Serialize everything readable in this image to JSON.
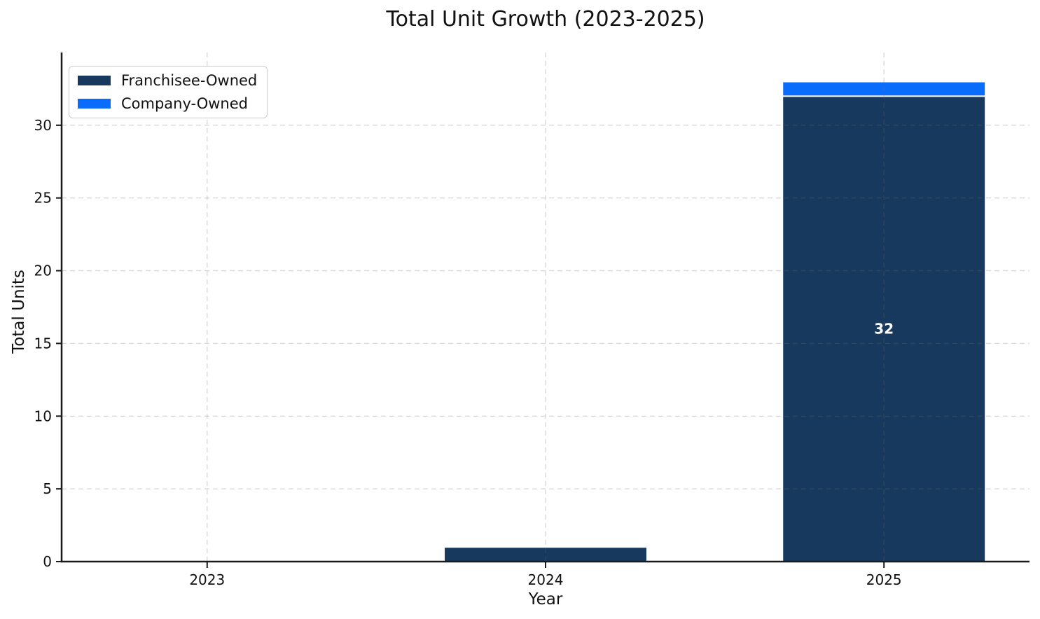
{
  "chart_data": {
    "type": "bar",
    "stacked": true,
    "title": "Total Unit Growth (2023-2025)",
    "xlabel": "Year",
    "ylabel": "Total Units",
    "categories": [
      "2023",
      "2024",
      "2025"
    ],
    "series": [
      {
        "name": "Franchisee-Owned",
        "color": "#17395e",
        "values": [
          0,
          1,
          32
        ]
      },
      {
        "name": "Company-Owned",
        "color": "#0a6cfb",
        "values": [
          0,
          0,
          1
        ]
      }
    ],
    "ylim": [
      0,
      35
    ],
    "yticks": [
      0,
      5,
      10,
      15,
      20,
      25,
      30
    ],
    "grid": {
      "style": "dashed",
      "color_on_white": "#d9d9d9",
      "horizontal": true,
      "vertical": true
    },
    "legend_position": "upper left",
    "value_labels": [
      {
        "category": "2025",
        "series": "Franchisee-Owned",
        "text": "32",
        "color": "#ffffff"
      }
    ],
    "bar_edge_color": "#ffffff"
  }
}
